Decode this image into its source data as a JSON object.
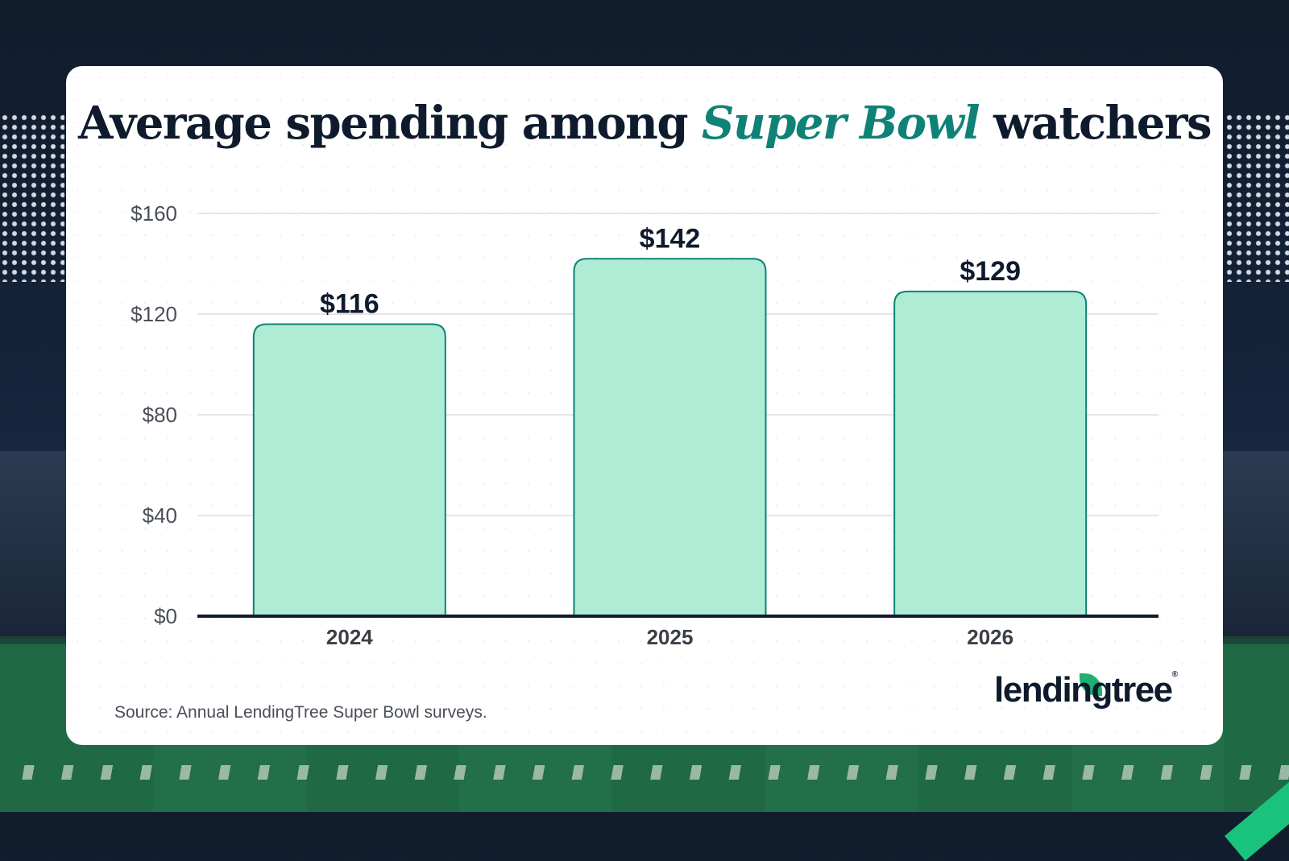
{
  "title": {
    "before": "Average spending among ",
    "highlight": "Super Bowl",
    "after": " watchers"
  },
  "source": "Source: Annual LendingTree Super Bowl surveys.",
  "brand": {
    "name": "lendingtree",
    "accent_color": "#1fb071"
  },
  "colors": {
    "bar_fill": "#aeecd5",
    "bar_stroke": "#0f8277",
    "title_highlight": "#0f8277"
  },
  "chart_data": {
    "type": "bar",
    "categories": [
      "2024",
      "2025",
      "2026"
    ],
    "values": [
      116,
      142,
      129
    ],
    "data_labels": [
      "$116",
      "$142",
      "$129"
    ],
    "yticks": [
      "$0",
      "$40",
      "$80",
      "$120",
      "$160"
    ],
    "ytick_values": [
      0,
      40,
      80,
      120,
      160
    ],
    "ylim": [
      0,
      160
    ],
    "grid": true,
    "xlabel": "",
    "ylabel": ""
  }
}
